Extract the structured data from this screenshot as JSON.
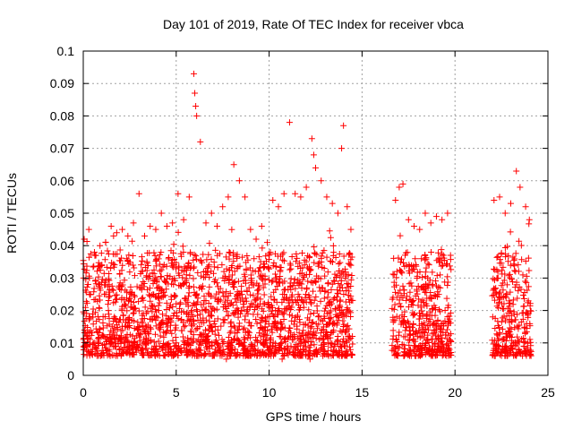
{
  "chart_data": {
    "type": "scatter",
    "title": "Day 101 of 2019, Rate Of TEC Index for receiver vbca",
    "xlabel": "GPS time / hours",
    "ylabel": "ROTI / TECUs",
    "xlim": [
      0,
      25
    ],
    "ylim": [
      0,
      0.1
    ],
    "x_ticks": [
      "0",
      "5",
      "10",
      "15",
      "20",
      "25"
    ],
    "y_ticks": [
      "0",
      "0.01",
      "0.02",
      "0.03",
      "0.04",
      "0.05",
      "0.06",
      "0.07",
      "0.08",
      "0.09",
      "0.1"
    ],
    "grid": true,
    "legend": "none",
    "marker": "+",
    "color": "#ff0000",
    "series": [
      {
        "x": [
          0.05,
          0.3,
          0.6,
          0.9,
          1.2,
          1.5,
          1.8,
          2.1,
          2.4,
          2.7,
          3.0,
          3.3,
          3.6,
          3.9,
          4.2,
          4.5,
          4.8,
          5.1,
          5.4,
          5.7,
          5.95,
          6.0,
          6.05,
          6.1,
          6.3,
          6.6,
          6.9,
          7.2,
          7.5,
          7.8,
          8.1,
          8.4,
          8.7,
          9.0,
          9.3,
          9.6,
          9.9,
          10.2,
          10.5,
          10.8,
          11.1,
          11.4,
          11.7,
          12.0,
          12.3,
          12.4,
          12.5,
          12.8,
          13.1,
          13.4,
          13.7,
          13.9,
          14.0,
          14.2,
          14.4,
          16.8,
          17.0,
          17.2,
          17.5,
          17.8,
          18.1,
          18.4,
          18.7,
          19.0,
          19.3,
          19.6,
          22.1,
          22.4,
          22.7,
          23.0,
          23.3,
          23.5,
          23.8,
          24.0,
          0.2,
          0.5,
          0.8,
          1.1,
          1.4,
          1.7,
          2.0,
          2.3,
          2.6,
          2.9,
          3.2,
          3.5,
          3.8,
          4.1,
          4.4,
          4.7,
          5.0,
          5.3,
          5.6,
          6.2,
          6.5,
          6.8,
          7.1,
          7.4,
          7.7,
          8.0,
          8.3,
          8.6,
          8.9,
          9.2,
          9.5,
          9.8,
          10.1,
          10.4,
          10.7,
          11.0,
          11.3,
          11.6,
          11.9,
          12.2,
          12.6,
          12.9,
          13.2,
          13.5,
          13.8,
          14.1,
          16.9,
          17.3,
          17.6,
          17.9,
          18.2,
          18.5,
          18.8,
          19.1,
          19.4,
          19.7,
          22.2,
          22.5,
          22.8,
          23.1,
          23.4,
          23.7,
          23.9
        ],
        "y": [
          0.042,
          0.045,
          0.038,
          0.04,
          0.041,
          0.046,
          0.044,
          0.045,
          0.043,
          0.047,
          0.056,
          0.043,
          0.046,
          0.045,
          0.05,
          0.046,
          0.047,
          0.056,
          0.048,
          0.055,
          0.093,
          0.087,
          0.083,
          0.08,
          0.072,
          0.047,
          0.05,
          0.046,
          0.052,
          0.055,
          0.065,
          0.06,
          0.055,
          0.045,
          0.042,
          0.046,
          0.041,
          0.054,
          0.052,
          0.056,
          0.078,
          0.056,
          0.055,
          0.058,
          0.073,
          0.068,
          0.064,
          0.06,
          0.055,
          0.053,
          0.05,
          0.07,
          0.077,
          0.052,
          0.045,
          0.054,
          0.058,
          0.059,
          0.048,
          0.046,
          0.045,
          0.05,
          0.047,
          0.049,
          0.048,
          0.05,
          0.054,
          0.055,
          0.05,
          0.053,
          0.063,
          0.058,
          0.052,
          0.048,
          0.009,
          0.008,
          0.01,
          0.012,
          0.008,
          0.009,
          0.011,
          0.007,
          0.01,
          0.009,
          0.008,
          0.01,
          0.007,
          0.009,
          0.006,
          0.008,
          0.009,
          0.007,
          0.01,
          0.008,
          0.006,
          0.009,
          0.008,
          0.007,
          0.005,
          0.008,
          0.007,
          0.009,
          0.006,
          0.008,
          0.007,
          0.01,
          0.006,
          0.008,
          0.005,
          0.009,
          0.007,
          0.006,
          0.008,
          0.005,
          0.007,
          0.008,
          0.006,
          0.009,
          0.007,
          0.006,
          0.009,
          0.007,
          0.008,
          0.006,
          0.008,
          0.007,
          0.006,
          0.009,
          0.007,
          0.008,
          0.009,
          0.007,
          0.006,
          0.008,
          0.007,
          0.009,
          0.008
        ]
      }
    ]
  }
}
